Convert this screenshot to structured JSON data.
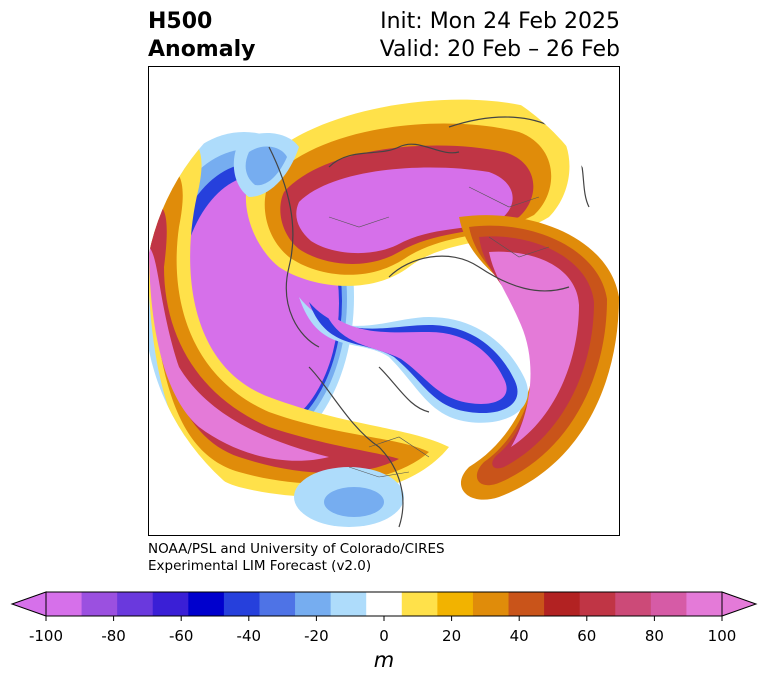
{
  "title": {
    "left_line1": "H500",
    "left_line2": "Anomaly",
    "init": "Init: Mon 24 Feb 2025",
    "valid": "Valid: 20 Feb – 26 Feb"
  },
  "credit": {
    "line1": "NOAA/PSL and University of Colorado/CIRES",
    "line2": "Experimental LIM Forecast (v2.0)"
  },
  "colorbar": {
    "unit": "m",
    "ticks": [
      "-100",
      "-80",
      "-60",
      "-40",
      "-20",
      "0",
      "20",
      "40",
      "60",
      "80",
      "100"
    ],
    "levels": [
      -100,
      -90,
      -80,
      -70,
      -60,
      -50,
      -40,
      -30,
      -20,
      -10,
      10,
      20,
      30,
      40,
      50,
      60,
      70,
      80,
      90,
      100
    ],
    "colors": [
      "#d670ea",
      "#9b50e0",
      "#6a39dd",
      "#3a1fd6",
      "#0000cd",
      "#2640dc",
      "#4e73e6",
      "#76adf0",
      "#aedcfb",
      "#ffffff",
      "#ffe14a",
      "#f2b300",
      "#e08c0a",
      "#c9541a",
      "#b22222",
      "#c03545",
      "#cc4a78",
      "#d65ba6",
      "#e47ad8"
    ]
  }
}
